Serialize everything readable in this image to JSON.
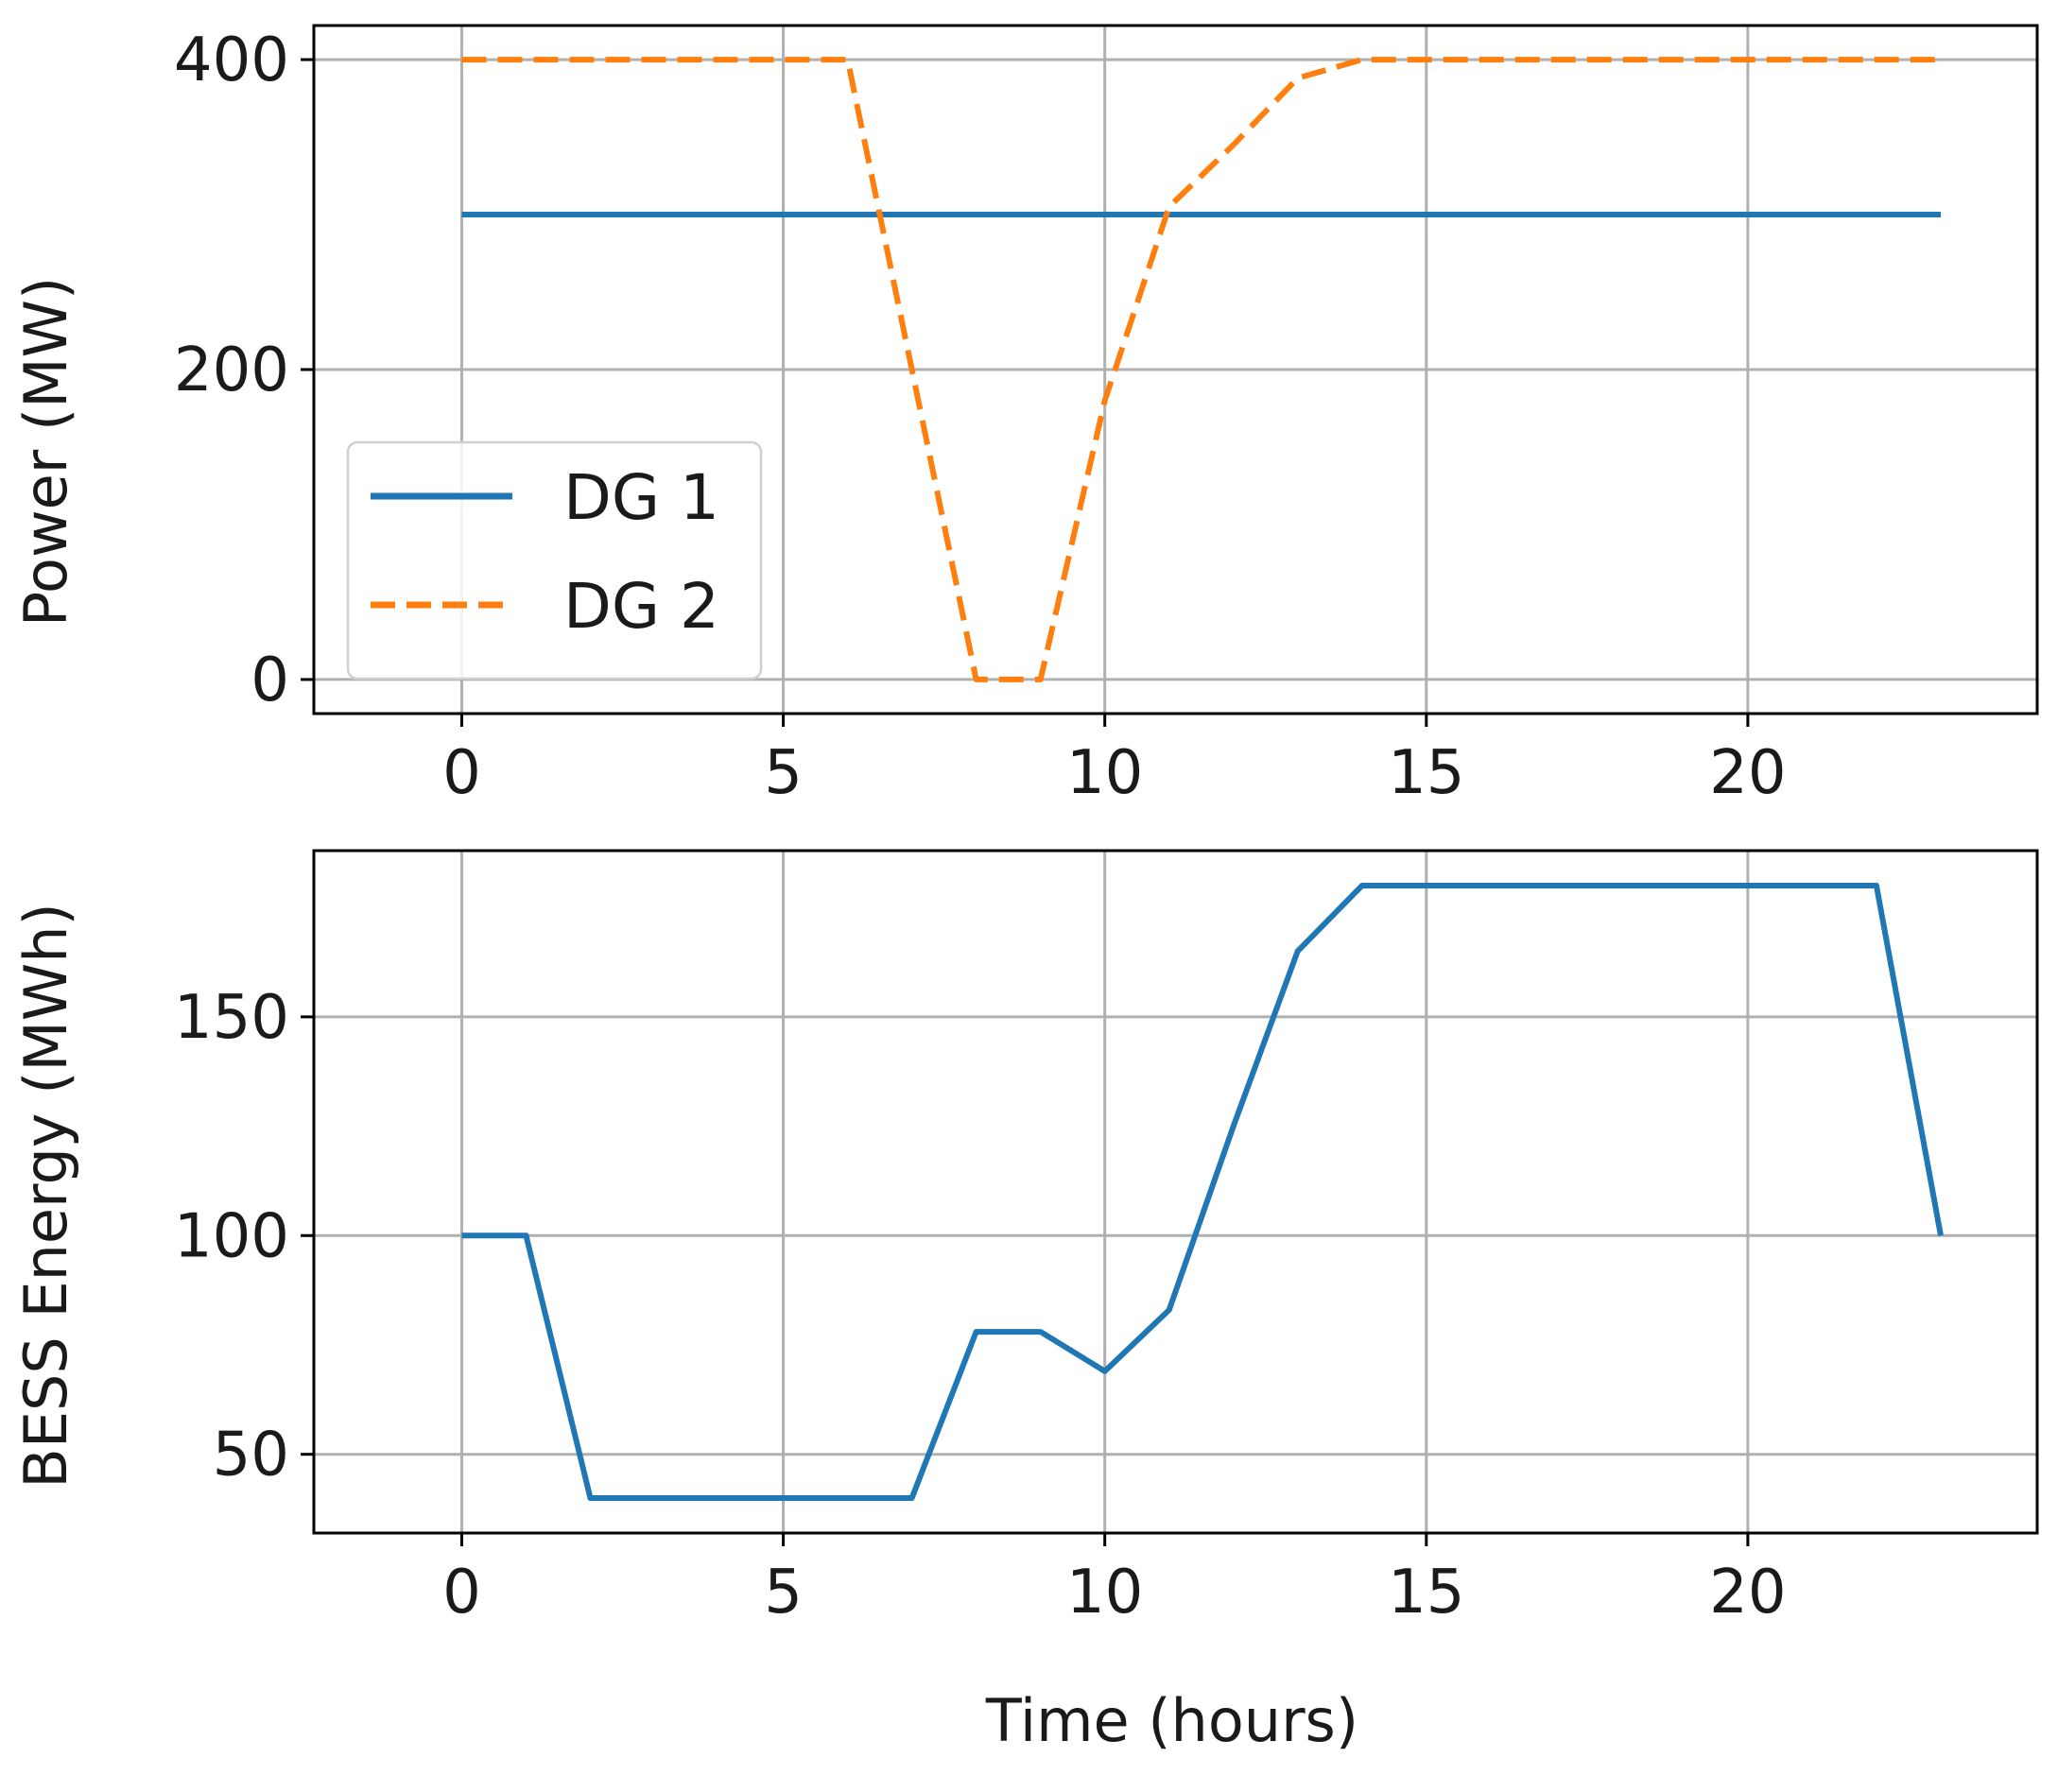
{
  "chart_data": [
    {
      "type": "line",
      "title": "",
      "xlabel": "",
      "ylabel": "Power (MW)",
      "xlim": [
        -2.3,
        24.5
      ],
      "ylim": [
        -22,
        422
      ],
      "xticks": [
        0,
        5,
        10,
        15,
        20
      ],
      "yticks": [
        0,
        200,
        400
      ],
      "grid": true,
      "legend": "lower-left",
      "series": [
        {
          "name": "DG 1",
          "color": "#1f77b4",
          "style": "solid",
          "x": [
            0,
            1,
            2,
            3,
            4,
            5,
            6,
            7,
            8,
            9,
            10,
            11,
            12,
            13,
            14,
            15,
            16,
            17,
            18,
            19,
            20,
            21,
            22,
            23
          ],
          "y": [
            300,
            300,
            300,
            300,
            300,
            300,
            300,
            300,
            300,
            300,
            300,
            300,
            300,
            300,
            300,
            300,
            300,
            300,
            300,
            300,
            300,
            300,
            300,
            300
          ]
        },
        {
          "name": "DG 2",
          "color": "#ff7f0e",
          "style": "dashed",
          "x": [
            0,
            1,
            2,
            3,
            4,
            5,
            6,
            7,
            8,
            9,
            10,
            11,
            12,
            13,
            14,
            15,
            16,
            17,
            18,
            19,
            20,
            21,
            22,
            23
          ],
          "y": [
            400,
            400,
            400,
            400,
            400,
            400,
            400,
            200,
            0,
            0,
            180,
            305,
            345,
            388,
            400,
            400,
            400,
            400,
            400,
            400,
            400,
            400,
            400,
            400
          ]
        }
      ]
    },
    {
      "type": "line",
      "title": "",
      "xlabel": "Time (hours)",
      "ylabel": "BESS Energy (MWh)",
      "xlim": [
        -2.3,
        24.5
      ],
      "ylim": [
        32,
        188
      ],
      "xticks": [
        0,
        5,
        10,
        15,
        20
      ],
      "yticks": [
        50,
        100,
        150
      ],
      "grid": true,
      "series": [
        {
          "color": "#1f77b4",
          "style": "solid",
          "x": [
            0,
            1,
            2,
            3,
            4,
            5,
            6,
            7,
            8,
            9,
            10,
            11,
            12,
            13,
            14,
            15,
            16,
            17,
            18,
            19,
            20,
            21,
            22,
            23
          ],
          "y": [
            100,
            100,
            40,
            40,
            40,
            40,
            40,
            40,
            78,
            78,
            69,
            83,
            125,
            165,
            180,
            180,
            180,
            180,
            180,
            180,
            180,
            180,
            180,
            100
          ]
        }
      ]
    }
  ]
}
